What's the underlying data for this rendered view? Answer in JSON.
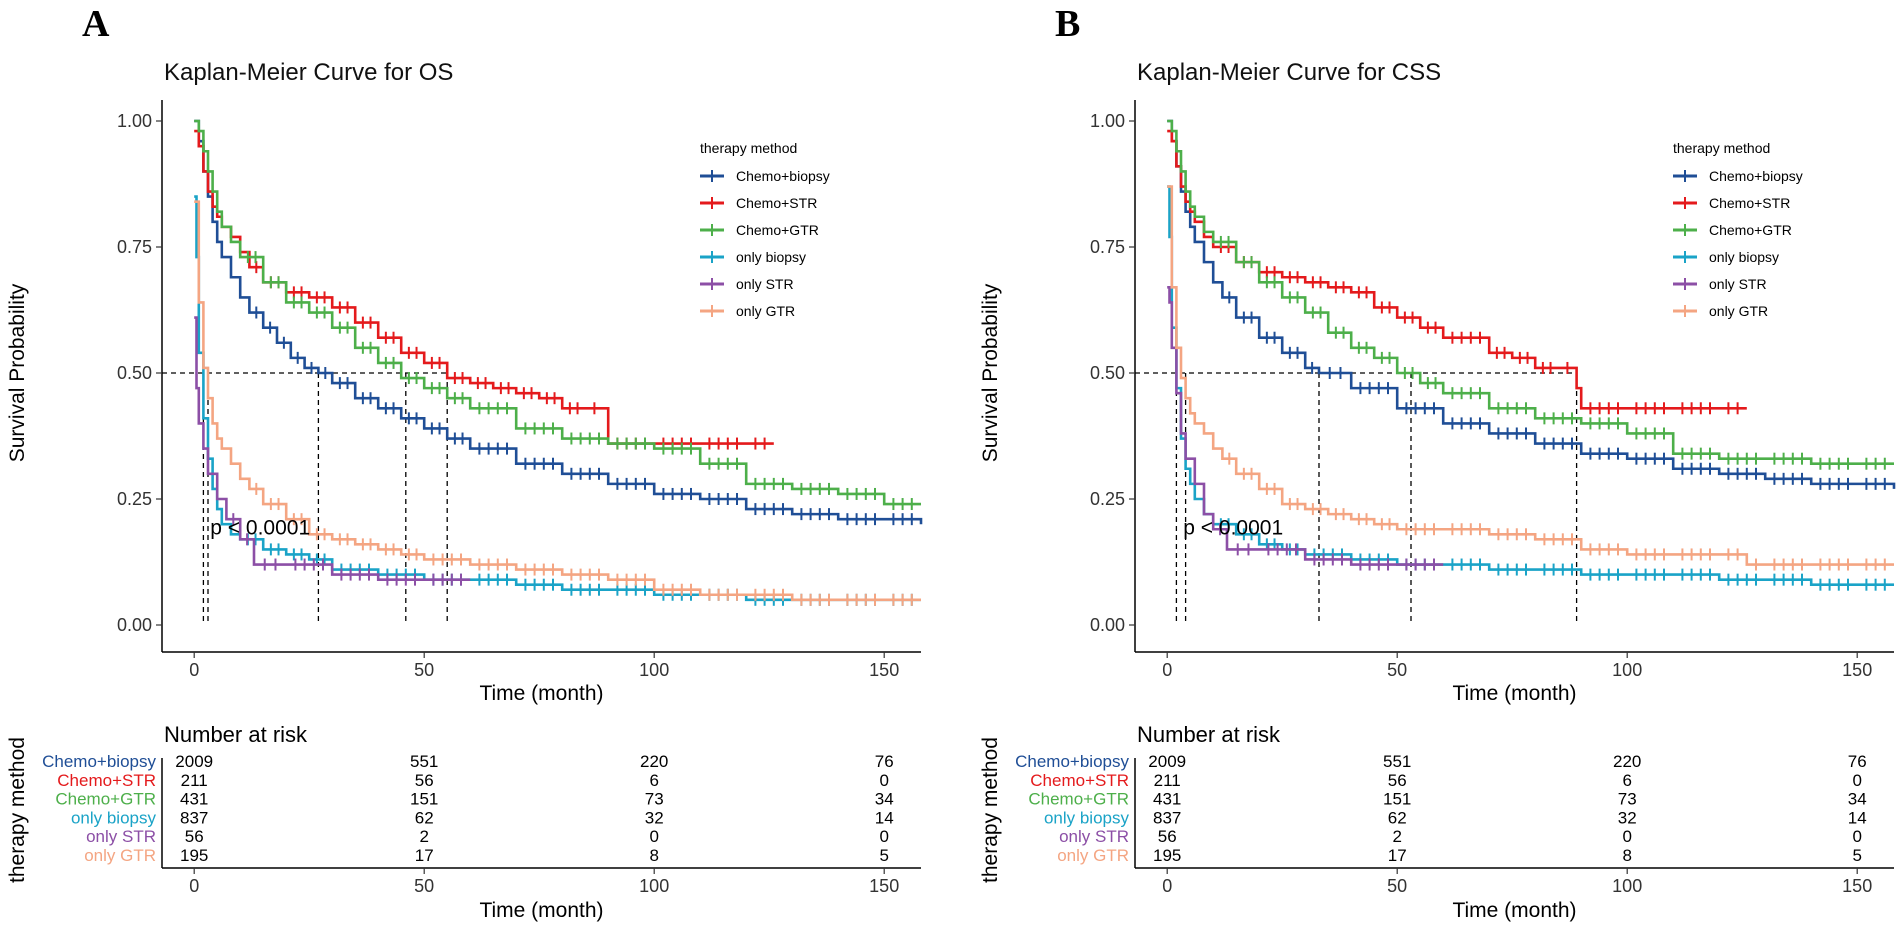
{
  "chart_data": [
    {
      "panel_label": "A",
      "type": "line",
      "title": "Kaplan-Meier Curve for OS",
      "xlabel": "Time (month)",
      "ylabel": "Survival Probability",
      "xlim": [
        -7,
        158
      ],
      "ylim": [
        0,
        1
      ],
      "x_ticks": [
        0,
        50,
        100,
        150
      ],
      "y_ticks": [
        0.0,
        0.25,
        0.5,
        0.75,
        1.0
      ],
      "y_tick_labels": [
        "0.00",
        "0.25",
        "0.50",
        "0.75",
        "1.00"
      ],
      "legend_title": "therapy method",
      "p_value": "p < 0.0001",
      "median_survival": [
        2,
        3,
        27,
        46,
        55
      ],
      "series": [
        {
          "name": "Chemo+biopsy",
          "color": "#1f4e96",
          "x": [
            0,
            1,
            2,
            3,
            4,
            5,
            6,
            8,
            10,
            12,
            15,
            18,
            21,
            24,
            27,
            30,
            35,
            40,
            45,
            50,
            55,
            60,
            70,
            80,
            90,
            100,
            110,
            120,
            130,
            140,
            150,
            158
          ],
          "y": [
            1.0,
            0.96,
            0.9,
            0.85,
            0.8,
            0.76,
            0.73,
            0.69,
            0.65,
            0.62,
            0.59,
            0.56,
            0.53,
            0.51,
            0.5,
            0.48,
            0.45,
            0.43,
            0.41,
            0.39,
            0.37,
            0.35,
            0.32,
            0.3,
            0.28,
            0.26,
            0.25,
            0.23,
            0.22,
            0.21,
            0.21,
            0.2
          ]
        },
        {
          "name": "Chemo+STR",
          "color": "#e41a1c",
          "x": [
            0,
            1,
            2,
            3,
            4,
            5,
            6,
            8,
            10,
            12,
            15,
            20,
            25,
            30,
            35,
            40,
            45,
            50,
            55,
            60,
            65,
            70,
            75,
            80,
            85,
            89,
            90,
            100,
            110,
            120,
            126
          ],
          "y": [
            0.98,
            0.95,
            0.9,
            0.86,
            0.83,
            0.81,
            0.79,
            0.77,
            0.74,
            0.71,
            0.68,
            0.66,
            0.65,
            0.63,
            0.6,
            0.57,
            0.54,
            0.52,
            0.49,
            0.48,
            0.47,
            0.46,
            0.45,
            0.43,
            0.43,
            0.43,
            0.36,
            0.36,
            0.36,
            0.36,
            0.36
          ]
        },
        {
          "name": "Chemo+GTR",
          "color": "#4daf4a",
          "x": [
            0,
            1,
            2,
            3,
            4,
            5,
            6,
            8,
            10,
            15,
            20,
            25,
            30,
            35,
            40,
            45,
            50,
            55,
            60,
            70,
            80,
            90,
            100,
            110,
            120,
            130,
            140,
            150,
            158
          ],
          "y": [
            1.0,
            0.98,
            0.94,
            0.9,
            0.86,
            0.82,
            0.79,
            0.76,
            0.73,
            0.68,
            0.64,
            0.62,
            0.59,
            0.55,
            0.52,
            0.49,
            0.47,
            0.45,
            0.43,
            0.39,
            0.37,
            0.36,
            0.35,
            0.32,
            0.28,
            0.27,
            0.26,
            0.24,
            0.24
          ]
        },
        {
          "name": "only biopsy",
          "color": "#1aa3c7",
          "x": [
            0,
            0.5,
            1,
            2,
            3,
            4,
            5,
            6,
            8,
            10,
            15,
            20,
            25,
            30,
            40,
            50,
            60,
            70,
            80,
            90,
            100,
            110,
            120,
            130,
            140,
            150,
            158
          ],
          "y": [
            0.85,
            0.73,
            0.54,
            0.41,
            0.33,
            0.27,
            0.23,
            0.2,
            0.18,
            0.17,
            0.15,
            0.14,
            0.13,
            0.11,
            0.1,
            0.09,
            0.09,
            0.08,
            0.07,
            0.07,
            0.06,
            0.06,
            0.05,
            0.05,
            0.05,
            0.05,
            0.05
          ]
        },
        {
          "name": "only STR",
          "color": "#8c4fa6",
          "x": [
            0,
            0.5,
            1,
            2,
            3,
            5,
            7,
            10,
            13,
            20,
            30,
            40,
            50,
            60
          ],
          "y": [
            0.61,
            0.47,
            0.4,
            0.35,
            0.3,
            0.25,
            0.21,
            0.17,
            0.12,
            0.12,
            0.1,
            0.09,
            0.09,
            0.09
          ]
        },
        {
          "name": "only GTR",
          "color": "#f4a582",
          "x": [
            0,
            1,
            2,
            3,
            4,
            5,
            6,
            8,
            10,
            12,
            15,
            20,
            25,
            30,
            35,
            40,
            45,
            50,
            60,
            70,
            80,
            90,
            100,
            110,
            120,
            130,
            140,
            150,
            158
          ],
          "y": [
            0.84,
            0.64,
            0.51,
            0.45,
            0.4,
            0.37,
            0.35,
            0.32,
            0.29,
            0.27,
            0.24,
            0.21,
            0.18,
            0.17,
            0.16,
            0.15,
            0.14,
            0.13,
            0.12,
            0.11,
            0.1,
            0.09,
            0.07,
            0.06,
            0.06,
            0.05,
            0.05,
            0.05,
            0.05
          ]
        }
      ],
      "risk_table": {
        "title": "Number at risk",
        "ylabel": "therapy method",
        "xlabel": "Time (month)",
        "times": [
          0,
          50,
          100,
          150
        ],
        "rows": [
          {
            "name": "Chemo+biopsy",
            "values": [
              "2009",
              "551",
              "220",
              "76"
            ]
          },
          {
            "name": "Chemo+STR",
            "values": [
              "211",
              "56",
              "6",
              "0"
            ]
          },
          {
            "name": "Chemo+GTR",
            "values": [
              "431",
              "151",
              "73",
              "34"
            ]
          },
          {
            "name": "only biopsy",
            "values": [
              "837",
              "62",
              "32",
              "14"
            ]
          },
          {
            "name": "only STR",
            "values": [
              "56",
              "2",
              "0",
              "0"
            ]
          },
          {
            "name": "only GTR",
            "values": [
              "195",
              "17",
              "8",
              "5"
            ]
          }
        ]
      }
    },
    {
      "panel_label": "B",
      "type": "line",
      "title": "Kaplan-Meier Curve for CSS",
      "xlabel": "Time (month)",
      "ylabel": "Survival Probability",
      "xlim": [
        -7,
        158
      ],
      "ylim": [
        0,
        1
      ],
      "x_ticks": [
        0,
        50,
        100,
        150
      ],
      "y_ticks": [
        0.0,
        0.25,
        0.5,
        0.75,
        1.0
      ],
      "y_tick_labels": [
        "0.00",
        "0.25",
        "0.50",
        "0.75",
        "1.00"
      ],
      "legend_title": "therapy method",
      "p_value": "p < 0.0001",
      "median_survival": [
        2,
        4,
        33,
        53,
        89
      ],
      "series": [
        {
          "name": "Chemo+biopsy",
          "color": "#1f4e96",
          "x": [
            0,
            1,
            2,
            3,
            4,
            5,
            6,
            8,
            10,
            12,
            15,
            20,
            25,
            30,
            33,
            40,
            50,
            60,
            70,
            80,
            90,
            100,
            110,
            120,
            130,
            140,
            150,
            158
          ],
          "y": [
            1.0,
            0.96,
            0.91,
            0.86,
            0.82,
            0.79,
            0.76,
            0.72,
            0.68,
            0.65,
            0.61,
            0.57,
            0.54,
            0.51,
            0.5,
            0.47,
            0.43,
            0.4,
            0.38,
            0.36,
            0.34,
            0.33,
            0.31,
            0.3,
            0.29,
            0.28,
            0.28,
            0.27
          ]
        },
        {
          "name": "Chemo+STR",
          "color": "#e41a1c",
          "x": [
            0,
            1,
            2,
            3,
            4,
            5,
            6,
            8,
            10,
            15,
            20,
            25,
            30,
            35,
            40,
            45,
            50,
            55,
            60,
            70,
            75,
            80,
            85,
            89,
            90,
            100,
            110,
            120,
            126
          ],
          "y": [
            0.98,
            0.96,
            0.91,
            0.87,
            0.84,
            0.82,
            0.8,
            0.77,
            0.75,
            0.72,
            0.7,
            0.69,
            0.68,
            0.67,
            0.66,
            0.63,
            0.61,
            0.59,
            0.57,
            0.54,
            0.53,
            0.51,
            0.51,
            0.47,
            0.43,
            0.43,
            0.43,
            0.43,
            0.43
          ]
        },
        {
          "name": "Chemo+GTR",
          "color": "#4daf4a",
          "x": [
            0,
            1,
            2,
            3,
            4,
            5,
            6,
            8,
            10,
            15,
            20,
            25,
            30,
            35,
            40,
            45,
            50,
            55,
            60,
            70,
            80,
            90,
            100,
            110,
            120,
            130,
            140,
            150,
            158
          ],
          "y": [
            1.0,
            0.98,
            0.94,
            0.9,
            0.86,
            0.83,
            0.81,
            0.78,
            0.76,
            0.72,
            0.68,
            0.65,
            0.62,
            0.58,
            0.55,
            0.53,
            0.5,
            0.48,
            0.46,
            0.43,
            0.41,
            0.4,
            0.38,
            0.34,
            0.33,
            0.33,
            0.32,
            0.32,
            0.32
          ]
        },
        {
          "name": "only biopsy",
          "color": "#1aa3c7",
          "x": [
            0,
            0.5,
            1,
            2,
            3,
            4,
            5,
            6,
            8,
            10,
            15,
            20,
            25,
            30,
            40,
            50,
            60,
            70,
            80,
            90,
            100,
            110,
            120,
            130,
            140,
            150,
            158
          ],
          "y": [
            0.87,
            0.77,
            0.59,
            0.47,
            0.37,
            0.31,
            0.28,
            0.25,
            0.22,
            0.2,
            0.18,
            0.16,
            0.15,
            0.14,
            0.13,
            0.12,
            0.12,
            0.11,
            0.11,
            0.1,
            0.1,
            0.1,
            0.09,
            0.09,
            0.08,
            0.08,
            0.08
          ]
        },
        {
          "name": "only STR",
          "color": "#8c4fa6",
          "x": [
            0,
            0.5,
            1,
            2,
            3,
            4,
            6,
            8,
            10,
            13,
            20,
            30,
            40,
            50,
            60
          ],
          "y": [
            0.67,
            0.64,
            0.55,
            0.46,
            0.38,
            0.33,
            0.28,
            0.22,
            0.19,
            0.15,
            0.15,
            0.13,
            0.12,
            0.12,
            0.12
          ]
        },
        {
          "name": "only GTR",
          "color": "#f4a582",
          "x": [
            0,
            1,
            2,
            3,
            4,
            5,
            6,
            8,
            10,
            12,
            15,
            20,
            25,
            30,
            35,
            40,
            45,
            50,
            60,
            70,
            80,
            90,
            100,
            110,
            120,
            126,
            130,
            140,
            150,
            158
          ],
          "y": [
            0.87,
            0.67,
            0.55,
            0.49,
            0.45,
            0.42,
            0.4,
            0.38,
            0.35,
            0.33,
            0.3,
            0.27,
            0.24,
            0.23,
            0.22,
            0.21,
            0.2,
            0.19,
            0.19,
            0.18,
            0.17,
            0.15,
            0.14,
            0.14,
            0.14,
            0.12,
            0.12,
            0.12,
            0.12,
            0.12
          ]
        }
      ],
      "risk_table": {
        "title": "Number at risk",
        "ylabel": "therapy method",
        "xlabel": "Time (month)",
        "times": [
          0,
          50,
          100,
          150
        ],
        "rows": [
          {
            "name": "Chemo+biopsy",
            "values": [
              "2009",
              "551",
              "220",
              "76"
            ]
          },
          {
            "name": "Chemo+STR",
            "values": [
              "211",
              "56",
              "6",
              "0"
            ]
          },
          {
            "name": "Chemo+GTR",
            "values": [
              "431",
              "151",
              "73",
              "34"
            ]
          },
          {
            "name": "only biopsy",
            "values": [
              "837",
              "62",
              "32",
              "14"
            ]
          },
          {
            "name": "only STR",
            "values": [
              "56",
              "2",
              "0",
              "0"
            ]
          },
          {
            "name": "only GTR",
            "values": [
              "195",
              "17",
              "8",
              "5"
            ]
          }
        ]
      }
    }
  ]
}
